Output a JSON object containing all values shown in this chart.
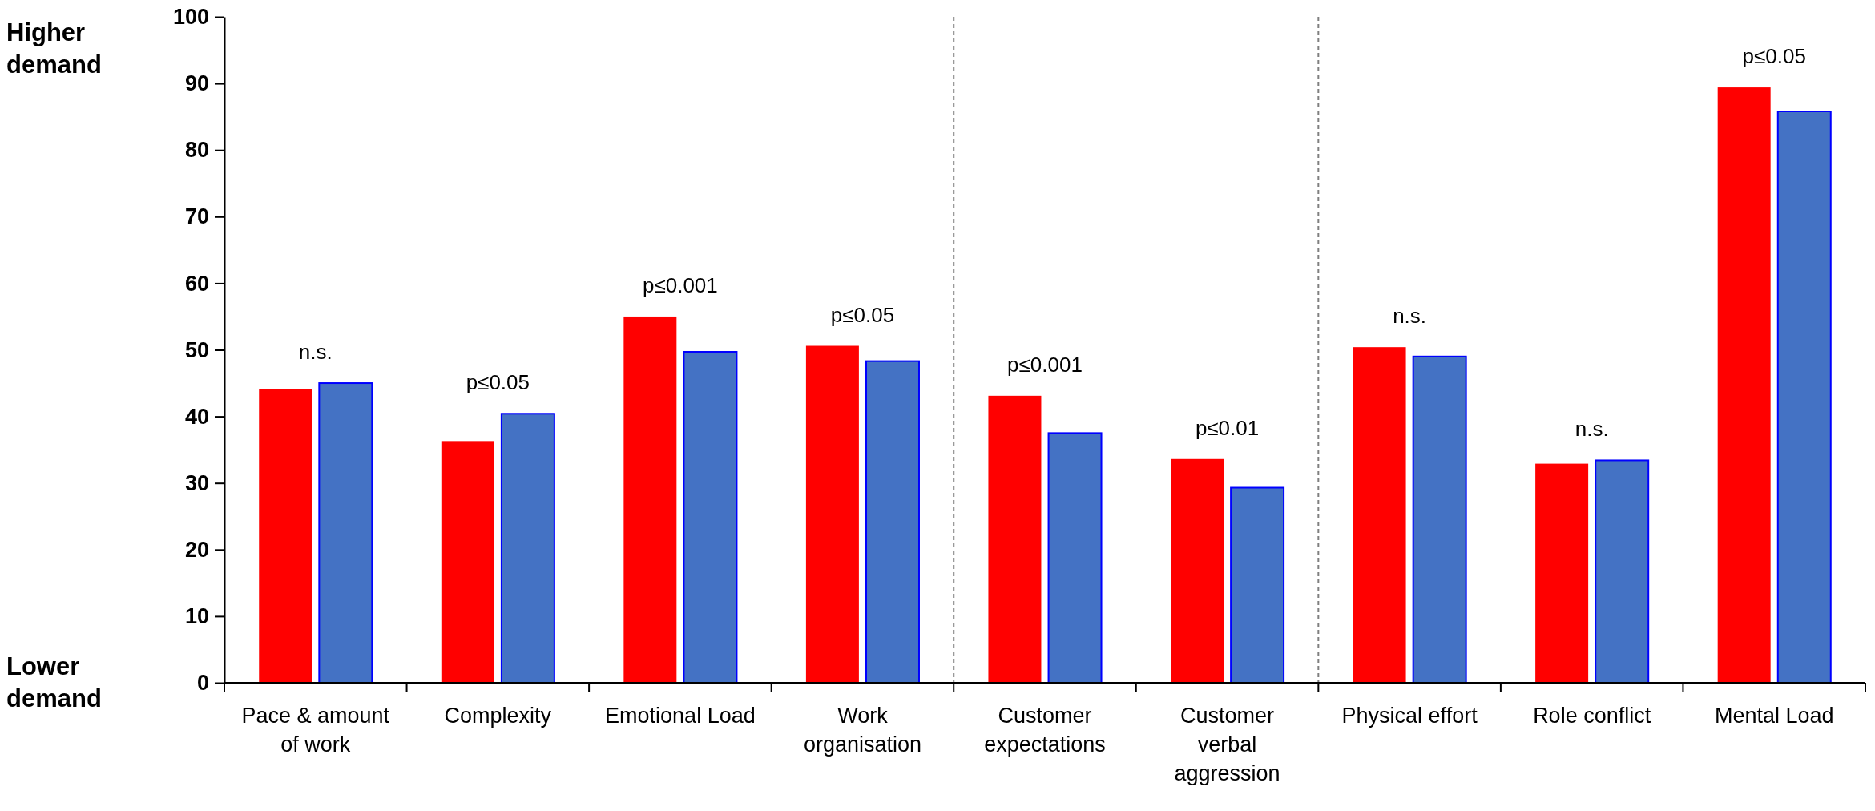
{
  "chart_data": {
    "type": "bar",
    "categories": [
      "Pace & amount of work",
      "Complexity",
      "Emotional Load",
      "Work organisation",
      "Customer expectations",
      "Customer verbal aggression",
      "Physical effort",
      "Role conflict",
      "Mental Load"
    ],
    "series": [
      {
        "color": "#ff0000",
        "values": [
          44.1,
          36.3,
          55.0,
          50.6,
          43.1,
          33.6,
          50.4,
          32.9,
          89.4
        ]
      },
      {
        "color": "#4472c4",
        "values": [
          45.0,
          40.4,
          49.7,
          48.3,
          37.5,
          29.3,
          49.0,
          33.4,
          85.8
        ]
      }
    ],
    "ylim": [
      0,
      100
    ],
    "yticks": [
      0,
      10,
      20,
      30,
      40,
      50,
      60,
      70,
      80,
      90,
      100
    ],
    "annotations": [
      "Higher demand",
      "Lower demand",
      "n.s.",
      "p≤0.05",
      "p≤0.001",
      "p≤0.05",
      "p≤0.001",
      "p≤0.01",
      "n.s.",
      "n.s.",
      "p≤0.05"
    ],
    "grid": false
  }
}
